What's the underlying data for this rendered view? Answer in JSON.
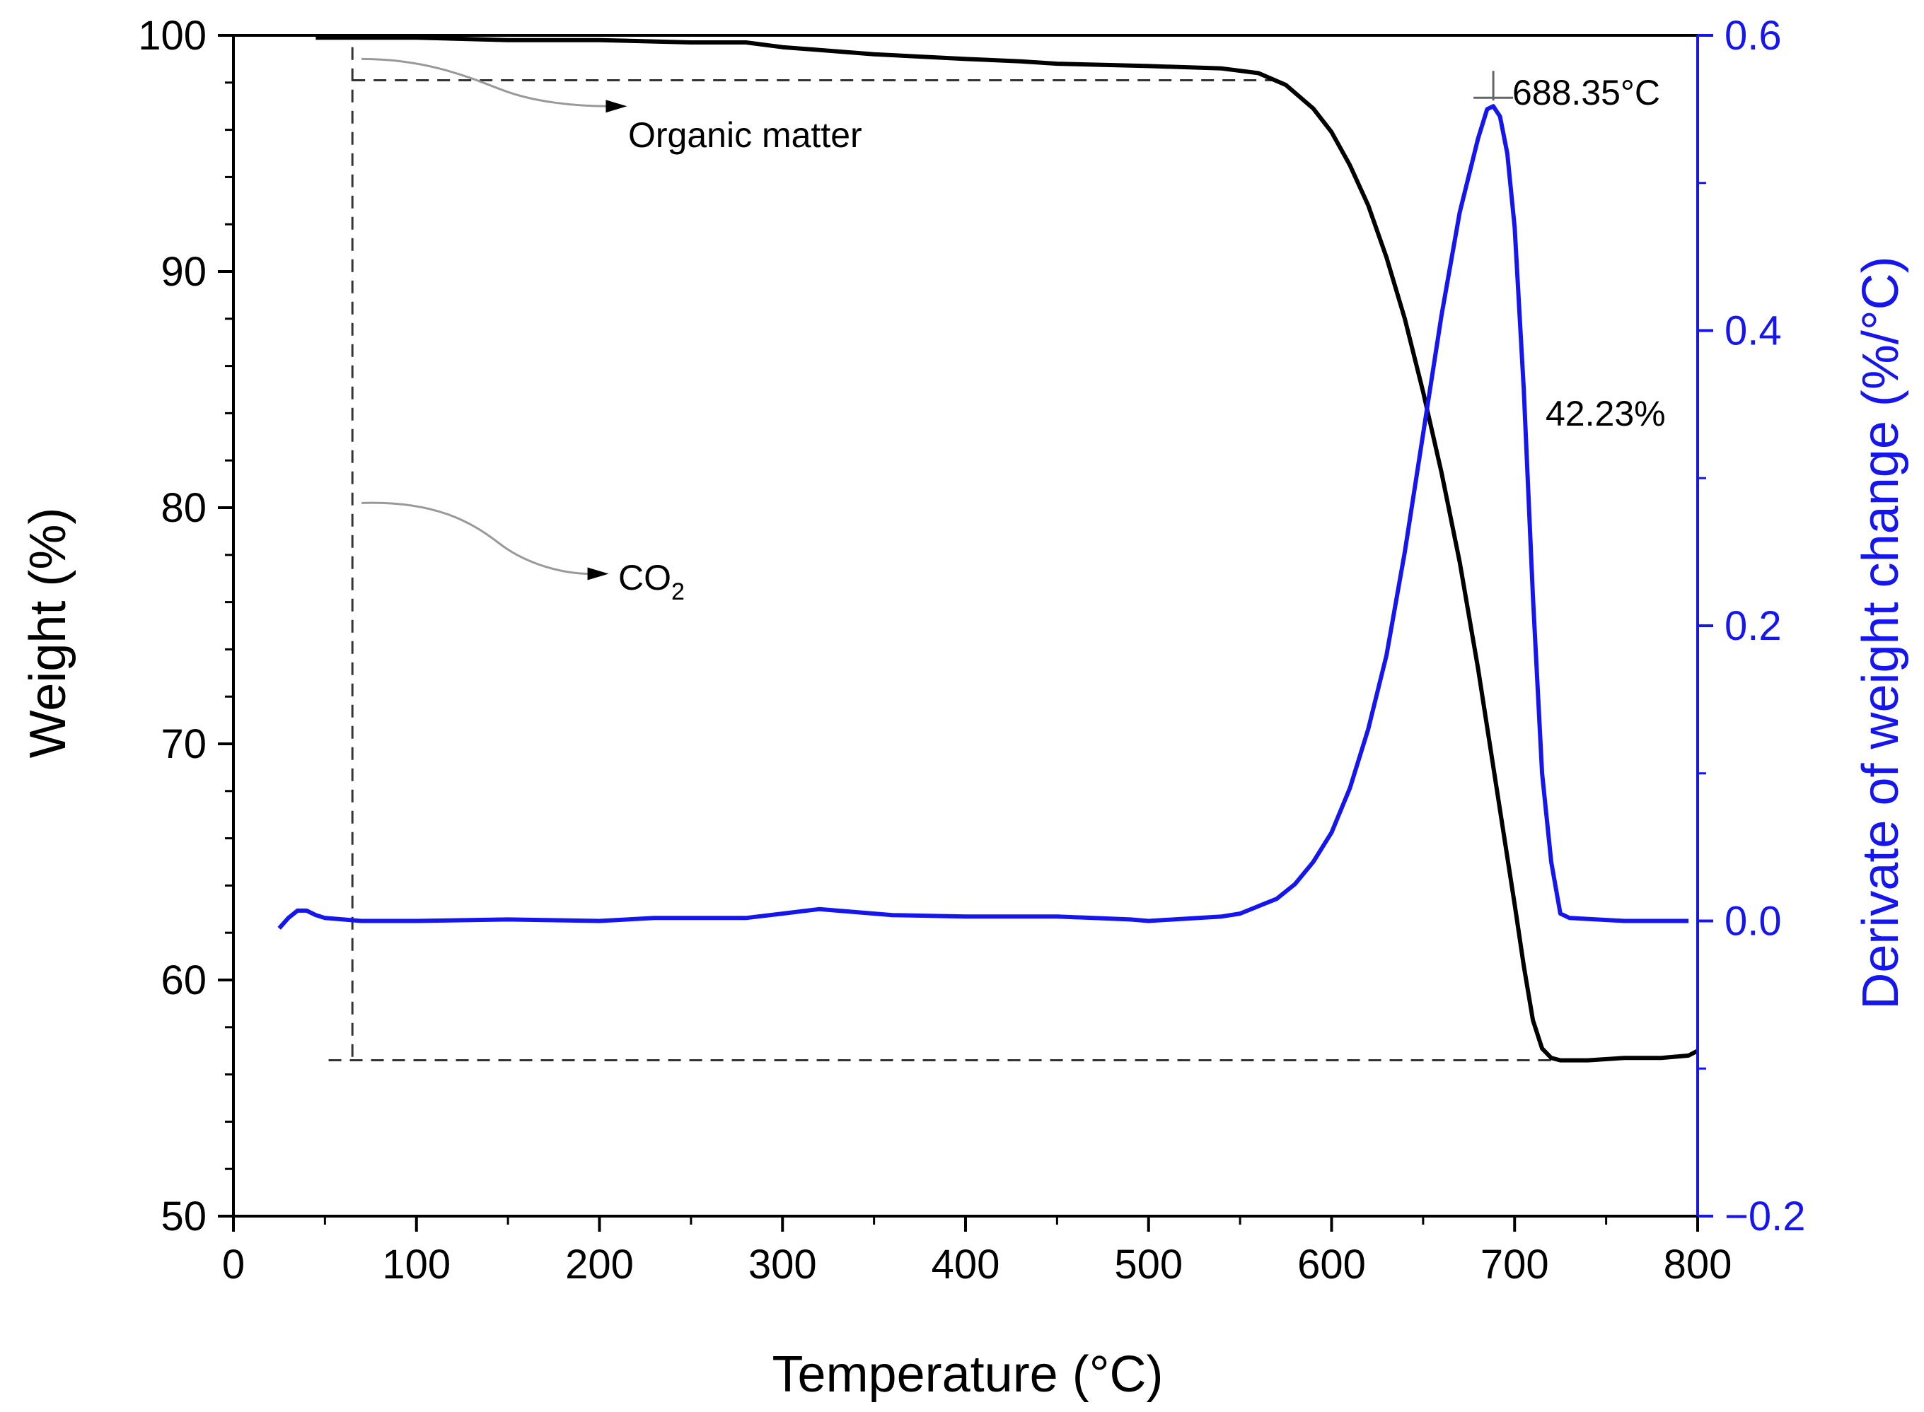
{
  "chart_data": {
    "type": "line",
    "title": "",
    "xlabel": "Temperature (°C)",
    "ylabel": "Weight (%)",
    "y2label": "Derivate of weight change (%/°C)",
    "xlim": [
      0,
      800
    ],
    "ylim": [
      50,
      100
    ],
    "y2lim": [
      -0.2,
      0.6
    ],
    "xticks": [
      "0",
      "100",
      "200",
      "300",
      "400",
      "500",
      "600",
      "700",
      "800"
    ],
    "yticks": [
      "50",
      "60",
      "70",
      "80",
      "90",
      "100"
    ],
    "y2ticks": [
      "−0.2",
      "0.0",
      "0.2",
      "0.4",
      "0.6"
    ],
    "grid": false,
    "colors": {
      "weight": "#000000",
      "derivative": "#1515f0",
      "guide": "#333333",
      "arrow": "#999999"
    },
    "series": [
      {
        "name": "Weight (%)",
        "axis": "left",
        "x": [
          45,
          70,
          100,
          150,
          200,
          250,
          280,
          300,
          350,
          400,
          430,
          450,
          500,
          540,
          560,
          575,
          590,
          600,
          610,
          620,
          630,
          640,
          650,
          660,
          670,
          680,
          690,
          700,
          705,
          710,
          715,
          720,
          725,
          740,
          760,
          780,
          795,
          800
        ],
        "y": [
          99.9,
          99.9,
          99.9,
          99.8,
          99.8,
          99.7,
          99.7,
          99.5,
          99.2,
          99.0,
          98.9,
          98.8,
          98.7,
          98.6,
          98.4,
          97.9,
          96.9,
          95.9,
          94.5,
          92.8,
          90.6,
          88.0,
          84.9,
          81.5,
          77.7,
          73.2,
          68.2,
          63.2,
          60.6,
          58.3,
          57.1,
          56.7,
          56.6,
          56.6,
          56.7,
          56.7,
          56.8,
          57.0
        ]
      },
      {
        "name": "Derivative weight change (%/°C)",
        "axis": "right",
        "x": [
          25,
          30,
          35,
          40,
          45,
          50,
          60,
          70,
          100,
          150,
          200,
          230,
          250,
          280,
          300,
          320,
          340,
          360,
          400,
          450,
          490,
          500,
          540,
          550,
          560,
          570,
          580,
          590,
          600,
          610,
          620,
          630,
          640,
          650,
          660,
          670,
          680,
          685,
          688.35,
          692,
          696,
          700,
          705,
          710,
          715,
          720,
          725,
          730,
          760,
          795
        ],
        "y": [
          -0.005,
          0.002,
          0.007,
          0.007,
          0.004,
          0.002,
          0.001,
          0.0,
          0.0,
          0.001,
          0.0,
          0.002,
          0.002,
          0.002,
          0.005,
          0.008,
          0.006,
          0.004,
          0.003,
          0.003,
          0.001,
          0.0,
          0.003,
          0.005,
          0.01,
          0.015,
          0.025,
          0.04,
          0.06,
          0.09,
          0.13,
          0.18,
          0.25,
          0.33,
          0.41,
          0.48,
          0.53,
          0.55,
          0.552,
          0.545,
          0.52,
          0.47,
          0.36,
          0.22,
          0.1,
          0.04,
          0.005,
          0.002,
          0.0,
          0.0
        ]
      }
    ],
    "annotations": {
      "peak_label": "688.35°C",
      "loss_label": "42.23%",
      "organic_label": "Organic matter",
      "co2_label": "CO",
      "co2_sub": "2"
    },
    "guides": {
      "upper_weight": 98.1,
      "lower_weight": 56.6,
      "vertical_temp": 65
    }
  }
}
